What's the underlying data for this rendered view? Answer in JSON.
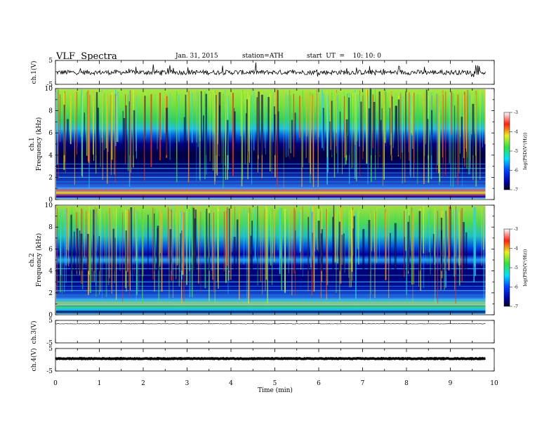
{
  "header": {
    "title": "VLF  Spectra",
    "date": "Jan. 31, 2015",
    "station": "station=ATH",
    "start": "start  UT  =    10: 10: 0"
  },
  "chart_data": {
    "type": "heatmap",
    "x_axis": {
      "label": "Time  (min)",
      "range": [
        0,
        10
      ],
      "ticks": [
        "0",
        "1",
        "2",
        "3",
        "4",
        "5",
        "6",
        "7",
        "8",
        "9",
        "10"
      ]
    },
    "panels": [
      {
        "name": "ch1-waveform",
        "ylabel": "ch.1(V)",
        "yrange": [
          -5,
          5
        ],
        "ticks": [
          "5",
          "-5"
        ],
        "trace_mean": 0,
        "trace_noise": 1.0,
        "x_end": 9.8
      },
      {
        "name": "ch1-spectrogram",
        "ylabel": "Frequency  (kHz)",
        "channel": "ch.1",
        "yrange": [
          0,
          10
        ],
        "ticks": [
          "0",
          "2",
          "4",
          "6",
          "8",
          "10"
        ],
        "x_end": 9.8,
        "colorbar": {
          "label": "log(PSD(V²/Hz))",
          "range": [
            -7,
            -3
          ],
          "ticks": [
            "-3",
            "-4",
            "-5",
            "-6",
            "-7"
          ]
        }
      },
      {
        "name": "ch2-spectrogram",
        "ylabel": "Frequency  (kHz)",
        "channel": "ch.2",
        "yrange": [
          0,
          10
        ],
        "ticks": [
          "0",
          "2",
          "4",
          "6",
          "8",
          "10"
        ],
        "x_end": 9.8,
        "colorbar": {
          "label": "log(PSD(V²/Hz))",
          "range": [
            -7,
            -3
          ],
          "ticks": [
            "-3",
            "-4",
            "-5",
            "-6",
            "-7"
          ]
        }
      },
      {
        "name": "ch3-waveform",
        "ylabel": "ch.3(V)",
        "yrange": [
          -5,
          5
        ],
        "ticks": [
          "5",
          "-5"
        ],
        "trace_mean": 3.5,
        "trace_noise": 0.1,
        "x_end": 9.8
      },
      {
        "name": "ch4-waveform",
        "ylabel": "ch.4(V)",
        "yrange": [
          -5,
          5
        ],
        "ticks": [
          "5",
          "-5"
        ],
        "trace_mean": 0.5,
        "trace_noise": 0.15,
        "x_end": 9.8
      }
    ]
  }
}
